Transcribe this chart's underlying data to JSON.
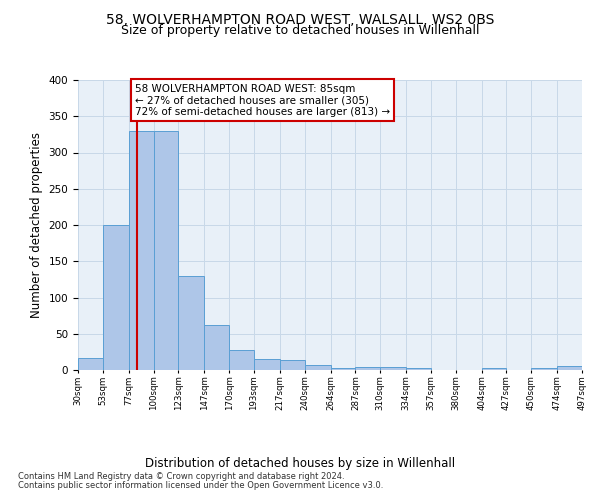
{
  "title1": "58, WOLVERHAMPTON ROAD WEST, WALSALL, WS2 0BS",
  "title2": "Size of property relative to detached houses in Willenhall",
  "xlabel": "Distribution of detached houses by size in Willenhall",
  "ylabel": "Number of detached properties",
  "footer1": "Contains HM Land Registry data © Crown copyright and database right 2024.",
  "footer2": "Contains public sector information licensed under the Open Government Licence v3.0.",
  "bar_edges": [
    30,
    53,
    77,
    100,
    123,
    147,
    170,
    193,
    217,
    240,
    264,
    287,
    310,
    334,
    357,
    380,
    404,
    427,
    450,
    474,
    497
  ],
  "bar_heights": [
    17,
    200,
    330,
    330,
    130,
    62,
    27,
    15,
    14,
    7,
    3,
    4,
    4,
    3,
    0,
    0,
    3,
    0,
    3,
    5
  ],
  "bar_color": "#aec6e8",
  "bar_edge_color": "#5a9fd4",
  "property_size": 85,
  "annotation_title": "58 WOLVERHAMPTON ROAD WEST: 85sqm",
  "annotation_line1": "← 27% of detached houses are smaller (305)",
  "annotation_line2": "72% of semi-detached houses are larger (813) →",
  "annotation_box_color": "#ffffff",
  "annotation_border_color": "#cc0000",
  "vline_color": "#cc0000",
  "ylim": [
    0,
    400
  ],
  "yticks": [
    0,
    50,
    100,
    150,
    200,
    250,
    300,
    350,
    400
  ],
  "grid_color": "#c8d8e8",
  "bg_color": "#e8f0f8",
  "title1_fontsize": 10,
  "title2_fontsize": 9,
  "xlabel_fontsize": 8.5,
  "ylabel_fontsize": 8.5,
  "annotation_fontsize": 7.5,
  "footer_fontsize": 6.0
}
